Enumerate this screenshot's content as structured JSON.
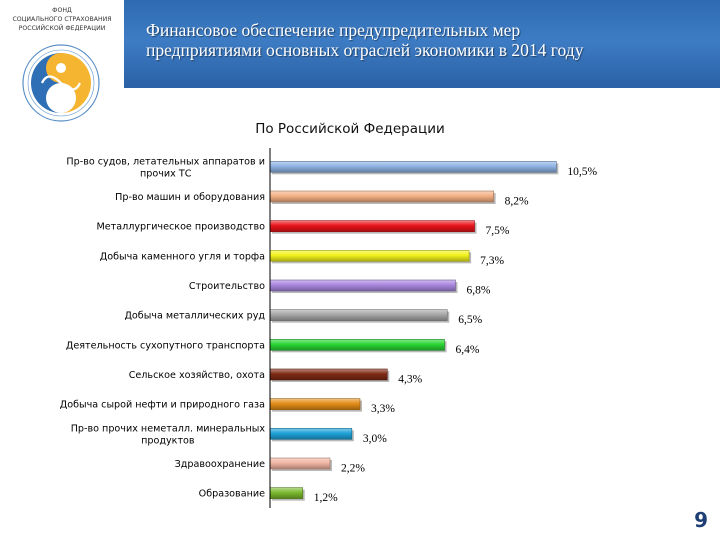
{
  "organization": {
    "name_lines": [
      "ФОНД",
      "СОЦИАЛЬНОГО СТРАХОВАНИЯ",
      "РОССИЙСКОЙ ФЕДЕРАЦИИ"
    ],
    "emblem_icon": "fss-emblem-icon"
  },
  "header": {
    "title_lines": [
      "Финансовое обеспечение предупредительных мер",
      "предприятиями основных отраслей экономики в 2014 году"
    ],
    "background_color": "#3573b8"
  },
  "chart_data": {
    "type": "bar",
    "orientation": "horizontal",
    "title": "По Российской Федерации",
    "xlabel": "",
    "ylabel": "",
    "xlim": [
      0,
      11
    ],
    "grid": false,
    "legend": "none",
    "categories": [
      [
        "Пр-во судов, летательных аппаратов и",
        "прочих ТС"
      ],
      [
        "Пр-во машин и оборудования"
      ],
      [
        "Металлургическое производство"
      ],
      [
        "Добыча каменного угля и торфа"
      ],
      [
        "Строительство"
      ],
      [
        "Добыча металлических руд"
      ],
      [
        "Деятельность сухопутного транспорта"
      ],
      [
        "Сельское хозяйство, охота"
      ],
      [
        "Добыча сырой нефти и природного газа"
      ],
      [
        "Пр-во прочих неметалл. минеральных",
        "продуктов"
      ],
      [
        "Здравоохранение"
      ],
      [
        "Образование"
      ]
    ],
    "values": [
      10.5,
      8.2,
      7.5,
      7.3,
      6.8,
      6.5,
      6.4,
      4.3,
      3.3,
      3.0,
      2.2,
      1.2
    ],
    "value_labels": [
      "10,5%",
      "8,2%",
      "7,5%",
      "7,3%",
      "6,8%",
      "6,5%",
      "6,4%",
      "4,3%",
      "3,3%",
      "3,0%",
      "2,2%",
      "1,2%"
    ],
    "colors": [
      "#8db3e2",
      "#f4b083",
      "#e8141b",
      "#f2f21c",
      "#a886de",
      "#a6a6a6",
      "#2ad433",
      "#7f2a14",
      "#e38d17",
      "#1fa2d8",
      "#f2b5a2",
      "#79b82c"
    ]
  },
  "page": {
    "number": "9"
  }
}
